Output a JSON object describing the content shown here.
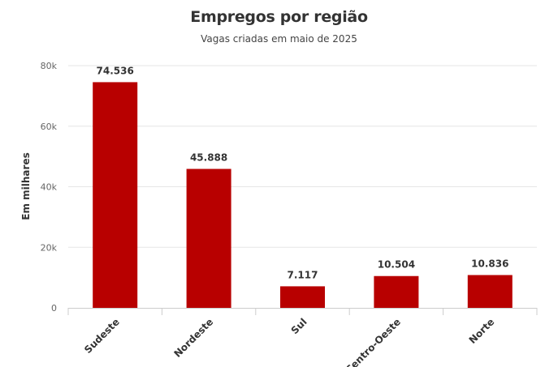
{
  "chart_data": {
    "type": "bar",
    "title": "Empregos por região",
    "subtitle": "Vagas criadas em maio de 2025",
    "xlabel": "",
    "ylabel": "Em milhares",
    "categories": [
      "Sudeste",
      "Nordeste",
      "Sul",
      "Centro-Oeste",
      "Norte"
    ],
    "values": [
      74536,
      45888,
      7117,
      10504,
      10836
    ],
    "value_labels": [
      "74.536",
      "45.888",
      "7.117",
      "10.504",
      "10.836"
    ],
    "ylim": [
      0,
      80000
    ],
    "yticks": [
      0,
      20000,
      40000,
      60000,
      80000
    ],
    "ytick_labels": [
      "0",
      "20k",
      "40k",
      "60k",
      "80k"
    ],
    "grid": true,
    "bar_color": "#b80000"
  }
}
